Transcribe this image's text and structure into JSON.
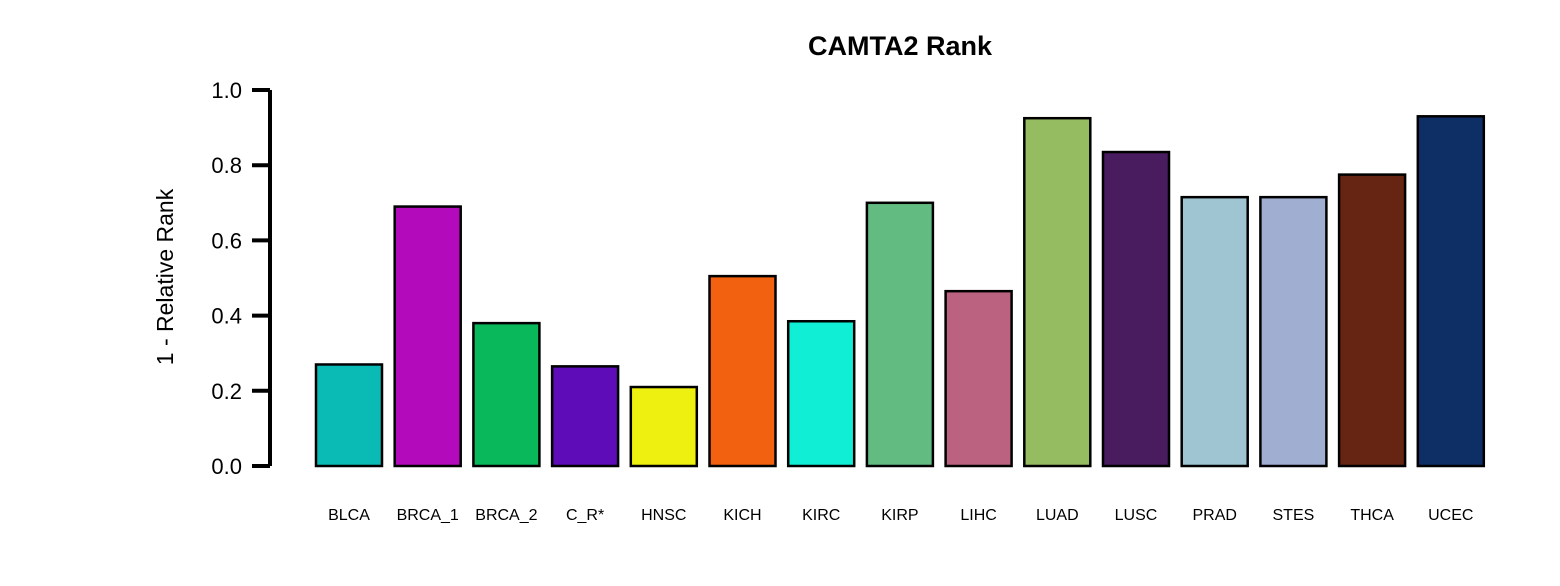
{
  "chart_data": {
    "type": "bar",
    "title": "CAMTA2 Rank",
    "xlabel": "",
    "ylabel": "1 - Relative Rank",
    "ylim": [
      0,
      1.0
    ],
    "yticks": [
      "0.0",
      "0.2",
      "0.4",
      "0.6",
      "0.8",
      "1.0"
    ],
    "grid": false,
    "legend": "none",
    "categories": [
      "BLCA",
      "BRCA_1",
      "BRCA_2",
      "C_R*",
      "HNSC",
      "KICH",
      "KIRC",
      "KIRP",
      "LIHC",
      "LUAD",
      "LUSC",
      "PRAD",
      "STES",
      "THCA",
      "UCEC"
    ],
    "values": [
      0.27,
      0.69,
      0.38,
      0.265,
      0.21,
      0.505,
      0.385,
      0.7,
      0.465,
      0.925,
      0.835,
      0.715,
      0.715,
      0.775,
      0.93
    ],
    "colors": [
      "#0ABAB5",
      "#B30BBB",
      "#09B85A",
      "#5E0BB8",
      "#EEF00F",
      "#F26110",
      "#10EFD5",
      "#62BB81",
      "#BC6281",
      "#96BC62",
      "#481C5E",
      "#A0C5D2",
      "#A0AED2",
      "#662412",
      "#0E2F65"
    ]
  }
}
